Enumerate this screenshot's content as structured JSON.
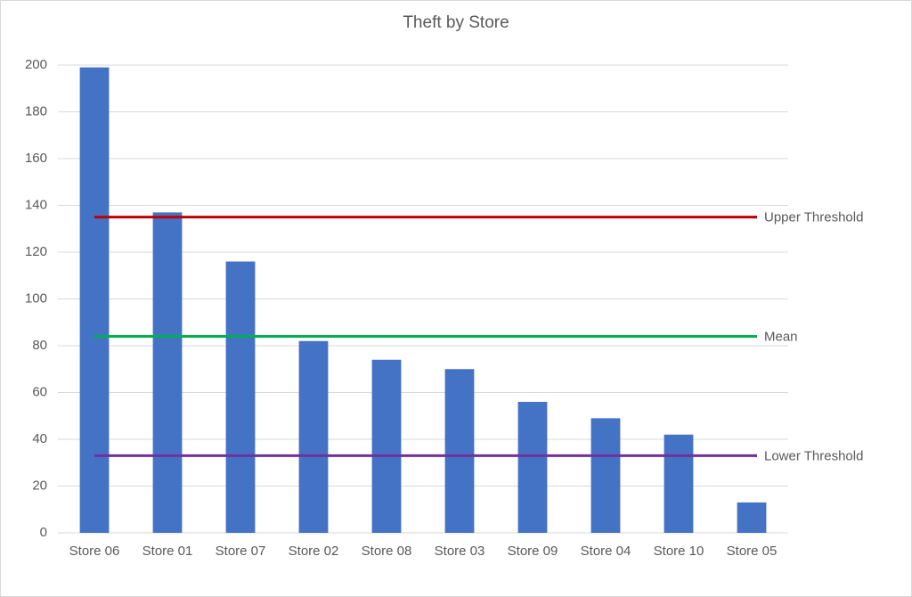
{
  "chart_data": {
    "type": "bar",
    "title": "Theft by Store",
    "categories": [
      "Store 06",
      "Store 01",
      "Store 07",
      "Store 02",
      "Store 08",
      "Store 03",
      "Store 09",
      "Store 04",
      "Store 10",
      "Store 05"
    ],
    "values": [
      199,
      137,
      116,
      82,
      74,
      70,
      56,
      49,
      42,
      13
    ],
    "color": "#4472c4",
    "reference_lines": [
      {
        "name": "Upper Threshold",
        "value": 135,
        "color": "#c00000"
      },
      {
        "name": "Mean",
        "value": 84,
        "color": "#00b050"
      },
      {
        "name": "Lower Threshold",
        "value": 33,
        "color": "#7030a0"
      }
    ],
    "ylim": [
      0,
      200
    ],
    "yticks": [
      0,
      20,
      40,
      60,
      80,
      100,
      120,
      140,
      160,
      180,
      200
    ],
    "grid": true
  }
}
